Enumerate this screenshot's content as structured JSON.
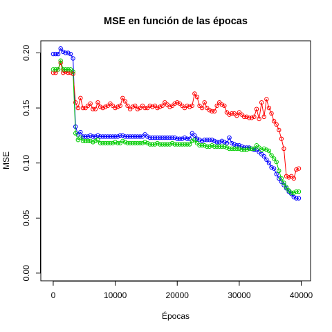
{
  "chart_data": {
    "type": "line",
    "title": "MSE en función de las épocas",
    "xlabel": "Épocas",
    "ylabel": "MSE",
    "xlim": [
      -2000,
      41500
    ],
    "ylim": [
      -0.007,
      0.211
    ],
    "x_ticks": [
      0,
      10000,
      20000,
      30000,
      40000
    ],
    "x_tick_labels": [
      "0",
      "10000",
      "20000",
      "30000",
      "40000"
    ],
    "y_ticks": [
      0.0,
      0.05,
      0.1,
      0.15,
      0.2
    ],
    "y_tick_labels": [
      "0.00",
      "0.05",
      "0.10",
      "0.15",
      "0.20"
    ],
    "marker": "open-circle",
    "grid": false,
    "legend": "none",
    "x": [
      0,
      400,
      800,
      1200,
      1600,
      2000,
      2400,
      2800,
      3200,
      3600,
      4000,
      4400,
      4800,
      5200,
      5600,
      6000,
      6400,
      6800,
      7200,
      7600,
      8000,
      8400,
      8800,
      9200,
      9600,
      10000,
      10400,
      10800,
      11200,
      11600,
      12000,
      12400,
      12800,
      13200,
      13600,
      14000,
      14400,
      14800,
      15200,
      15600,
      16000,
      16400,
      16800,
      17200,
      17600,
      18000,
      18400,
      18800,
      19200,
      19600,
      20000,
      20400,
      20800,
      21200,
      21600,
      22000,
      22400,
      22800,
      23200,
      23600,
      24000,
      24400,
      24800,
      25200,
      25600,
      26000,
      26400,
      26800,
      27200,
      27600,
      28000,
      28400,
      28800,
      29200,
      29600,
      30000,
      30400,
      30800,
      31200,
      31600,
      32000,
      32400,
      32800,
      33200,
      33600,
      34000,
      34400,
      34800,
      35200,
      35600,
      36000,
      36400,
      36800,
      37200,
      37600,
      38000,
      38400,
      38800,
      39200,
      39600
    ],
    "series": [
      {
        "color": "#0000ff",
        "values": [
          0.199,
          0.199,
          0.199,
          0.204,
          0.201,
          0.2,
          0.2,
          0.199,
          0.195,
          0.133,
          0.126,
          0.128,
          0.124,
          0.124,
          0.124,
          0.125,
          0.124,
          0.124,
          0.125,
          0.124,
          0.124,
          0.124,
          0.124,
          0.124,
          0.124,
          0.124,
          0.124,
          0.125,
          0.125,
          0.124,
          0.124,
          0.124,
          0.124,
          0.124,
          0.124,
          0.124,
          0.124,
          0.126,
          0.124,
          0.123,
          0.123,
          0.123,
          0.123,
          0.123,
          0.123,
          0.123,
          0.123,
          0.123,
          0.123,
          0.123,
          0.122,
          0.122,
          0.122,
          0.123,
          0.122,
          0.122,
          0.127,
          0.125,
          0.122,
          0.121,
          0.12,
          0.121,
          0.121,
          0.121,
          0.121,
          0.12,
          0.119,
          0.119,
          0.12,
          0.119,
          0.118,
          0.123,
          0.118,
          0.117,
          0.116,
          0.116,
          0.115,
          0.114,
          0.114,
          0.114,
          0.113,
          0.112,
          0.112,
          0.11,
          0.108,
          0.106,
          0.103,
          0.1,
          0.096,
          0.095,
          0.09,
          0.086,
          0.083,
          0.08,
          0.077,
          0.074,
          0.072,
          0.069,
          0.068,
          0.068
        ]
      },
      {
        "color": "#ff0000",
        "values": [
          0.182,
          0.182,
          0.185,
          0.191,
          0.182,
          0.183,
          0.182,
          0.182,
          0.181,
          0.155,
          0.15,
          0.159,
          0.15,
          0.15,
          0.152,
          0.154,
          0.149,
          0.149,
          0.155,
          0.151,
          0.15,
          0.151,
          0.152,
          0.154,
          0.152,
          0.15,
          0.151,
          0.152,
          0.159,
          0.156,
          0.152,
          0.149,
          0.151,
          0.152,
          0.149,
          0.15,
          0.152,
          0.15,
          0.15,
          0.152,
          0.151,
          0.152,
          0.15,
          0.151,
          0.152,
          0.155,
          0.153,
          0.151,
          0.152,
          0.154,
          0.155,
          0.154,
          0.152,
          0.15,
          0.152,
          0.151,
          0.152,
          0.163,
          0.16,
          0.152,
          0.15,
          0.155,
          0.15,
          0.148,
          0.147,
          0.147,
          0.152,
          0.155,
          0.153,
          0.152,
          0.146,
          0.144,
          0.145,
          0.145,
          0.143,
          0.146,
          0.144,
          0.142,
          0.142,
          0.141,
          0.141,
          0.142,
          0.149,
          0.14,
          0.155,
          0.142,
          0.158,
          0.15,
          0.145,
          0.138,
          0.135,
          0.13,
          0.122,
          0.113,
          0.088,
          0.087,
          0.088,
          0.086,
          0.094,
          0.095
        ]
      },
      {
        "color": "#00cc00",
        "values": [
          0.185,
          0.185,
          0.185,
          0.193,
          0.185,
          0.185,
          0.185,
          0.185,
          0.183,
          0.127,
          0.121,
          0.123,
          0.12,
          0.12,
          0.12,
          0.12,
          0.119,
          0.12,
          0.121,
          0.118,
          0.118,
          0.118,
          0.118,
          0.118,
          0.118,
          0.119,
          0.118,
          0.118,
          0.12,
          0.119,
          0.118,
          0.118,
          0.118,
          0.118,
          0.118,
          0.118,
          0.118,
          0.119,
          0.118,
          0.117,
          0.117,
          0.117,
          0.118,
          0.117,
          0.117,
          0.117,
          0.117,
          0.117,
          0.118,
          0.117,
          0.117,
          0.117,
          0.117,
          0.117,
          0.117,
          0.117,
          0.12,
          0.121,
          0.118,
          0.116,
          0.116,
          0.116,
          0.115,
          0.115,
          0.116,
          0.115,
          0.115,
          0.115,
          0.115,
          0.115,
          0.114,
          0.113,
          0.113,
          0.113,
          0.113,
          0.113,
          0.112,
          0.112,
          0.112,
          0.113,
          0.113,
          0.113,
          0.116,
          0.114,
          0.112,
          0.113,
          0.112,
          0.111,
          0.107,
          0.104,
          0.101,
          0.093,
          0.086,
          0.082,
          0.078,
          0.075,
          0.073,
          0.073,
          0.074,
          0.074
        ]
      }
    ]
  }
}
